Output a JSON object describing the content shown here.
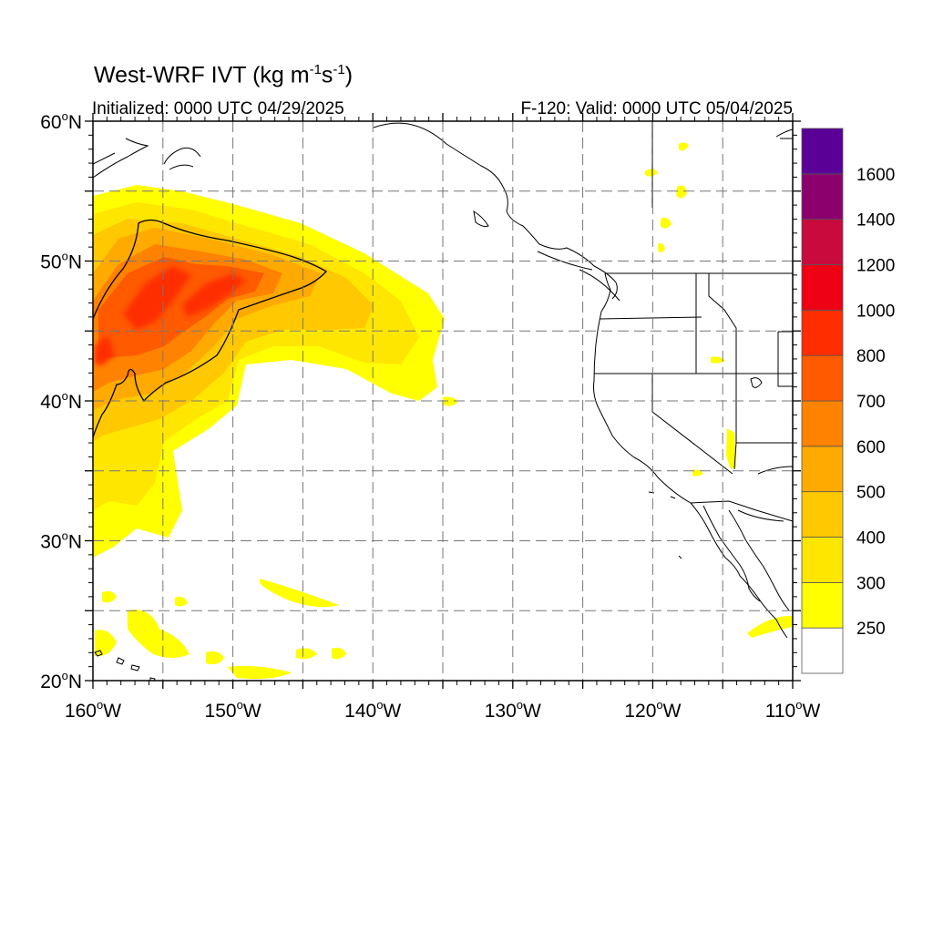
{
  "title": {
    "prefix": "West-WRF IVT (kg m",
    "exp1": "-1",
    "mid": "s",
    "exp2": "-1",
    "suffix": ")"
  },
  "subtitle_left": "Initialized: 0000 UTC 04/29/2025",
  "subtitle_right": "F-120: Valid: 0000 UTC 05/04/2025",
  "map": {
    "lon_range": [
      -160,
      -110
    ],
    "lat_range": [
      20,
      60
    ],
    "lat_ticks": [
      {
        "value": 60,
        "num": "60",
        "hemi": "N"
      },
      {
        "value": 50,
        "num": "50",
        "hemi": "N"
      },
      {
        "value": 40,
        "num": "40",
        "hemi": "N"
      },
      {
        "value": 30,
        "num": "30",
        "hemi": "N"
      },
      {
        "value": 20,
        "num": "20",
        "hemi": "N"
      }
    ],
    "lon_ticks": [
      {
        "value": -160,
        "num": "160",
        "hemi": "W"
      },
      {
        "value": -150,
        "num": "150",
        "hemi": "W"
      },
      {
        "value": -140,
        "num": "140",
        "hemi": "W"
      },
      {
        "value": -130,
        "num": "130",
        "hemi": "W"
      },
      {
        "value": -120,
        "num": "120",
        "hemi": "W"
      },
      {
        "value": -110,
        "num": "110",
        "hemi": "W"
      }
    ],
    "grid_lat": [
      25,
      30,
      35,
      40,
      45,
      50,
      55
    ],
    "grid_lon": [
      -155,
      -150,
      -145,
      -140,
      -135,
      -130,
      -125,
      -120,
      -115
    ],
    "degree_symbol": "o",
    "grid": "dashed",
    "colors": {
      "land_outline": "#000000",
      "state_outline": "#000000",
      "grid": "#777777"
    }
  },
  "colorbar": {
    "levels": [
      {
        "value": "",
        "color": "#ffffff"
      },
      {
        "value": "250",
        "color": "#ffff00"
      },
      {
        "value": "300",
        "color": "#ffe600"
      },
      {
        "value": "400",
        "color": "#ffc800"
      },
      {
        "value": "500",
        "color": "#ffaa00"
      },
      {
        "value": "600",
        "color": "#ff8200"
      },
      {
        "value": "700",
        "color": "#ff5a00"
      },
      {
        "value": "800",
        "color": "#ff2d00"
      },
      {
        "value": "1000",
        "color": "#ee0015"
      },
      {
        "value": "1200",
        "color": "#c80a3c"
      },
      {
        "value": "1400",
        "color": "#8c006e"
      },
      {
        "value": "1600",
        "color": "#5a0096"
      }
    ]
  }
}
